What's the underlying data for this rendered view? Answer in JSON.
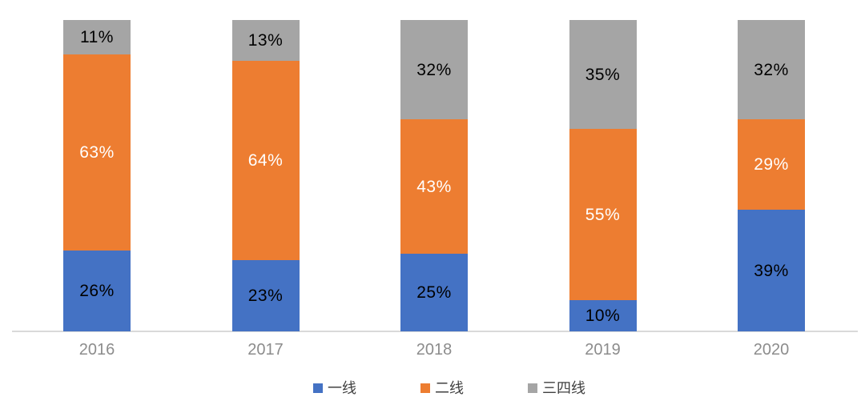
{
  "chart_data": {
    "type": "bar",
    "variant": "stacked-column-100",
    "title": "",
    "xlabel": "",
    "ylabel": "",
    "ylim": [
      0,
      100
    ],
    "grid": false,
    "legend_position": "bottom",
    "value_suffix": "%",
    "categories": [
      "2016",
      "2017",
      "2018",
      "2019",
      "2020"
    ],
    "series": [
      {
        "name": "一线",
        "color": "#4472C4",
        "label_color": "#000000",
        "values": [
          26,
          23,
          25,
          10,
          39
        ]
      },
      {
        "name": "二线",
        "color": "#ED7D31",
        "label_color": "#FFFFFF",
        "values": [
          63,
          64,
          43,
          55,
          29
        ]
      },
      {
        "name": "三四线",
        "color": "#A5A5A5",
        "label_color": "#000000",
        "values": [
          11,
          13,
          32,
          35,
          32
        ]
      }
    ],
    "colors": {
      "background": "#FFFFFF",
      "axis_line": "#D9D9D9",
      "axis_label": "#8C8C8C",
      "legend_text": "#404040"
    }
  }
}
